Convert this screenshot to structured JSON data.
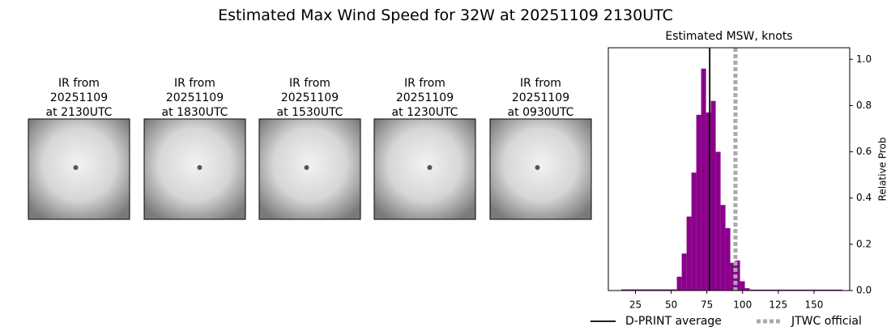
{
  "title": "Estimated Max Wind Speed for 32W at 20251109 2130UTC",
  "panels": [
    {
      "label_lines": [
        "IR from",
        "20251109",
        "at 2130UTC"
      ]
    },
    {
      "label_lines": [
        "IR from",
        "20251109",
        "at 1830UTC"
      ]
    },
    {
      "label_lines": [
        "IR from",
        "20251109",
        "at 1530UTC"
      ]
    },
    {
      "label_lines": [
        "IR from",
        "20251109",
        "at 1230UTC"
      ]
    },
    {
      "label_lines": [
        "IR from",
        "20251109",
        "at 0930UTC"
      ]
    }
  ],
  "chart_data": {
    "type": "histogram",
    "title": "Estimated MSW, knots",
    "bins": [
      15,
      54,
      57.4,
      60.8,
      64.2,
      67.6,
      71,
      74.4,
      77.8,
      81.2,
      84.6,
      88,
      91.4,
      94.8,
      98.2,
      101.6,
      105,
      170
    ],
    "values": [
      0.005,
      0.06,
      0.16,
      0.32,
      0.51,
      0.76,
      0.96,
      0.77,
      0.82,
      0.6,
      0.37,
      0.27,
      0.12,
      0.13,
      0.04,
      0.01,
      0.004
    ],
    "color": "#8b008b",
    "xlim": [
      6,
      175
    ],
    "xticks": [
      25,
      50,
      75,
      100,
      125,
      150
    ],
    "ylim": [
      0,
      1.05
    ],
    "yticks": [
      {
        "value": 0,
        "label": "0.0"
      },
      {
        "value": 0.2,
        "label": "0.2"
      },
      {
        "value": 0.4,
        "label": "0.4"
      },
      {
        "value": 0.6,
        "label": "0.6"
      },
      {
        "value": 0.8,
        "label": "0.8"
      },
      {
        "value": 1,
        "label": "1.0"
      }
    ],
    "y_label": "Relative Prob",
    "y_axis_side": "right",
    "reference_lines": [
      {
        "name": "D-PRINT average",
        "value": 77,
        "color": "#000000",
        "style": "solid"
      },
      {
        "name": "JTWC official",
        "value": 95,
        "color": "#aaaaaa",
        "style": "dotted"
      }
    ]
  }
}
